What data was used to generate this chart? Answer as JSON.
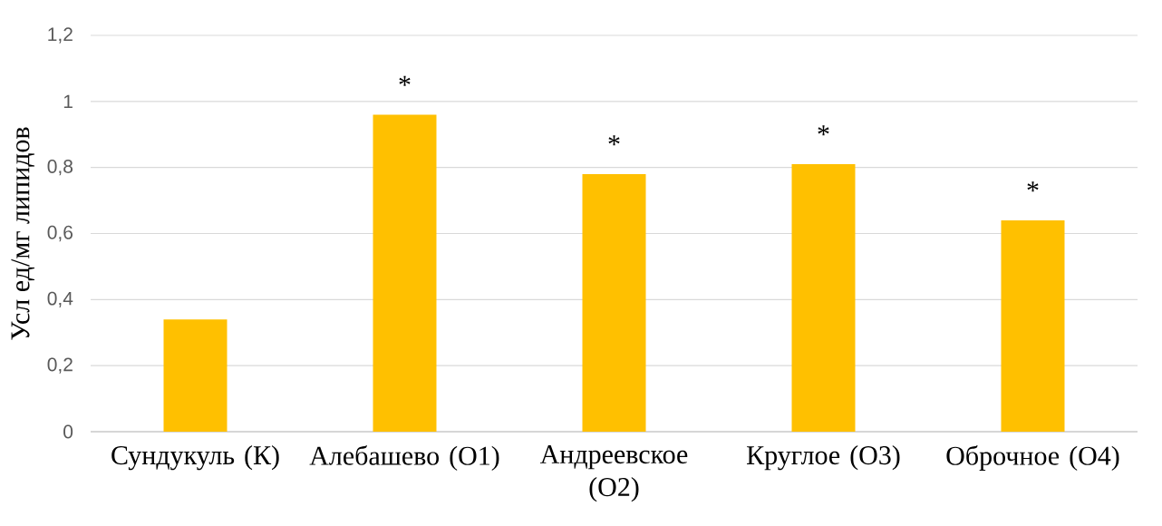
{
  "chart_data": {
    "type": "bar",
    "ylabel": "Усл ед/мг липидов",
    "categories": [
      "Сундукуль (К)",
      "Алебашево (О1)",
      "Андреевское (О2)",
      "Круглое (О3)",
      "Оброчное (О4)"
    ],
    "values": [
      0.34,
      0.96,
      0.78,
      0.81,
      0.64
    ],
    "color": "#ffc000",
    "ylim": [
      0,
      1.2
    ],
    "yticks": [
      0,
      {
        "value": 0.2,
        "label": "0,2"
      },
      {
        "value": 0.4,
        "label": "0,4"
      },
      {
        "value": 0.6,
        "label": "0,6"
      },
      {
        "value": 0.8,
        "label": "0,8"
      },
      1,
      {
        "value": 1.2,
        "label": "1,2"
      }
    ],
    "grid": "y",
    "annotations": [
      {
        "text": "*",
        "x": "Алебашево (О1)",
        "y": 0.96
      },
      {
        "text": "*",
        "x": "Андреевское (О2)",
        "y": 0.78
      },
      {
        "text": "*",
        "x": "Круглое (О3)",
        "y": 0.81
      },
      {
        "text": "*",
        "x": "Оброчное (О4)",
        "y": 0.64
      }
    ]
  }
}
